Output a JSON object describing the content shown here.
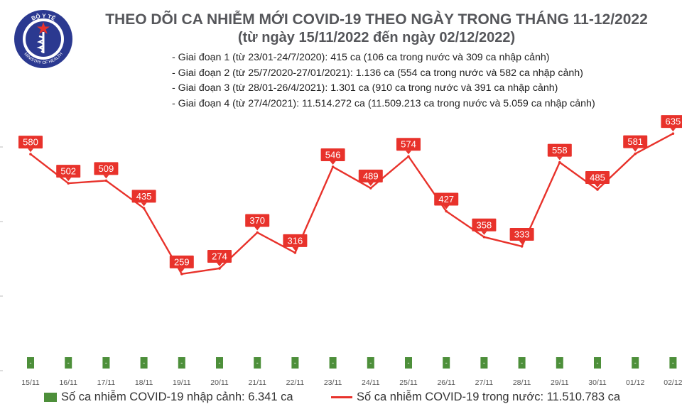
{
  "header": {
    "title": "THEO DÕI CA NHIỄM MỚI COVID-19 THEO NGÀY TRONG THÁNG 11-12/2022",
    "subtitle": "(từ ngày 15/11/2022 đến ngày 02/12/2022)",
    "notes": [
      "- Giai đoạn 1 (từ 23/01-24/7/2020): 415 ca (106 ca trong nước và 309 ca nhập cảnh)",
      "- Giai đoạn 2 (từ 25/7/2020-27/01/2021): 1.136 ca (554 ca trong nước và 582 ca nhập cảnh)",
      "- Giai đoạn 3 (từ 28/01-26/4/2021): 1.301 ca (910 ca trong nước và 391 ca nhập cảnh)",
      "- Giai đoạn 4 (từ 27/4/2021): 11.514.272 ca (11.509.213 ca trong nước và 5.059 ca nhập cảnh)"
    ]
  },
  "logo": {
    "top_text": "BỘ Y TẾ",
    "bottom_text": "MINISTRY OF HEALTH",
    "ring_color": "#2b3990",
    "star_color": "#e8322b"
  },
  "legend": {
    "imported": "Số ca nhiễm COVID-19 nhập cảnh: 6.341 ca",
    "domestic": "Số ca nhiễm COVID-19 trong nước: 11.510.783 ca"
  },
  "colors": {
    "domestic_line": "#e8322b",
    "imported_bar": "#4d8f3a",
    "axis_text": "#555555"
  },
  "chart_data": {
    "type": "line",
    "categories": [
      "15/11",
      "16/11",
      "17/11",
      "18/11",
      "19/11",
      "20/11",
      "21/11",
      "22/11",
      "23/11",
      "24/11",
      "25/11",
      "26/11",
      "27/11",
      "28/11",
      "29/11",
      "30/11",
      "01/12",
      "02/12"
    ],
    "series": [
      {
        "name": "Số ca nhiễm COVID-19 trong nước: 11.510.783 ca",
        "kind": "line",
        "values": [
          580,
          502,
          509,
          435,
          259,
          274,
          370,
          316,
          546,
          489,
          574,
          427,
          358,
          333,
          558,
          485,
          581,
          635
        ]
      },
      {
        "name": "Số ca nhiễm COVID-19 nhập cảnh: 6.341 ca",
        "kind": "bar",
        "values": [
          0,
          0,
          0,
          0,
          0,
          0,
          0,
          0,
          0,
          0,
          0,
          0,
          0,
          0,
          0,
          0,
          0,
          0
        ],
        "labels": [
          "-",
          "-",
          "-",
          "-",
          "-",
          "-",
          "-",
          "-",
          "-",
          "-",
          "-",
          "-",
          "-",
          "-",
          "-",
          "-",
          "-",
          "-"
        ]
      }
    ],
    "ylim": [
      0,
      700
    ],
    "grid": false,
    "legend_position": "bottom"
  }
}
